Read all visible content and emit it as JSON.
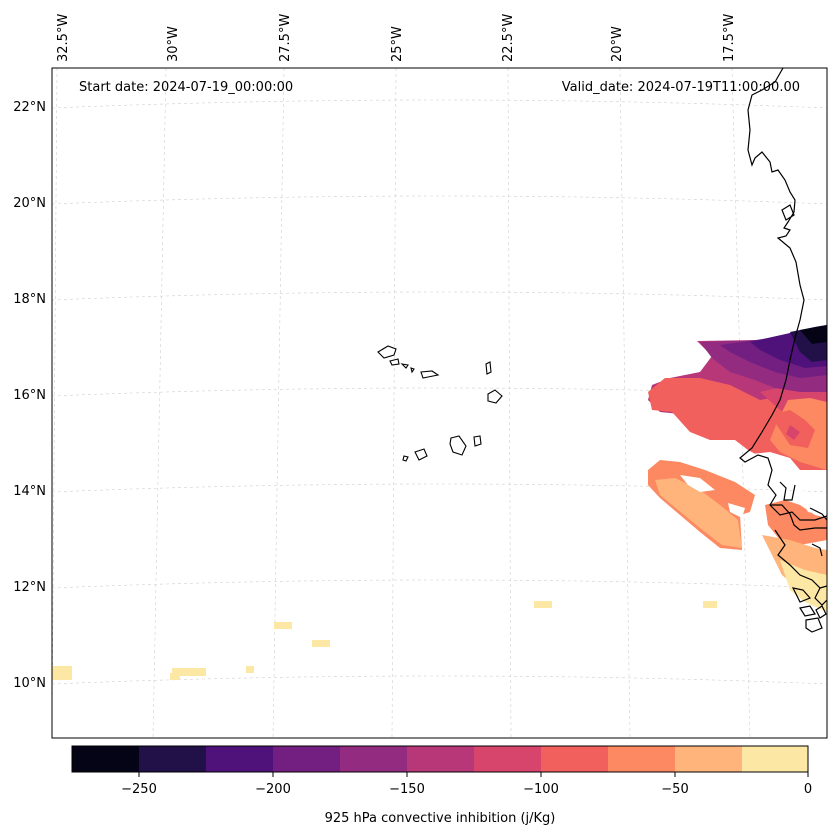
{
  "header": {
    "start_date": "Start date: 2024-07-19_00:00:00",
    "valid_date": "Valid_date: 2024-07-19T11:00:00.00"
  },
  "axes": {
    "lon_labels": [
      "32.5°W",
      "30°W",
      "27.5°W",
      "25°W",
      "22.5°W",
      "20°W",
      "17.5°W"
    ],
    "lat_labels": [
      "22°N",
      "20°N",
      "18°N",
      "16°N",
      "14°N",
      "12°N",
      "10°N"
    ]
  },
  "colorbar": {
    "label": "925 hPa convective inhibition (j/Kg)",
    "tick_labels": [
      "−250",
      "−200",
      "−150",
      "−100",
      "−50",
      "0"
    ],
    "colors": [
      "#050417",
      "#221149",
      "#4f127b",
      "#721f81",
      "#932b80",
      "#b73779",
      "#d8456c",
      "#f1605d",
      "#fc8961",
      "#feb47b",
      "#fce8a4"
    ]
  }
}
